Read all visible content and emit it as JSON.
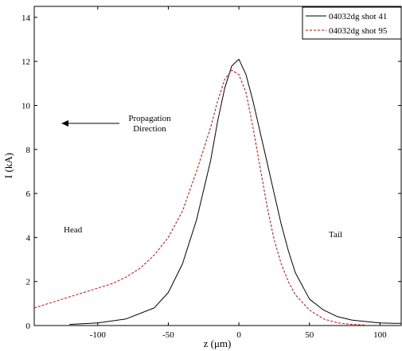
{
  "chart_data": {
    "type": "line",
    "xlabel": "z (μm)",
    "ylabel": "I (kA)",
    "xlim": [
      -145,
      115
    ],
    "ylim": [
      0,
      14.5
    ],
    "x_ticks": [
      -100,
      -50,
      0,
      50,
      100
    ],
    "y_ticks": [
      0,
      2,
      4,
      6,
      8,
      10,
      12,
      14
    ],
    "grid": false,
    "legend_position": "top-right",
    "annotations": {
      "propagation_line1": "Propagation",
      "propagation_line2": "Direction",
      "head": "Head",
      "tail": "Tail"
    },
    "series": [
      {
        "name": "04032dg shot 41",
        "color": "#000000",
        "dash": "solid",
        "x": [
          -120,
          -100,
          -80,
          -60,
          -50,
          -40,
          -30,
          -20,
          -15,
          -10,
          -5,
          0,
          5,
          10,
          15,
          20,
          25,
          30,
          35,
          40,
          50,
          60,
          70,
          80,
          90,
          100,
          110,
          115
        ],
        "y": [
          0.05,
          0.12,
          0.3,
          0.8,
          1.5,
          2.8,
          4.8,
          7.5,
          9.3,
          10.8,
          11.8,
          12.1,
          11.4,
          10.2,
          8.8,
          7.4,
          6.0,
          4.6,
          3.4,
          2.4,
          1.2,
          0.7,
          0.4,
          0.25,
          0.18,
          0.12,
          0.1,
          0.1
        ]
      },
      {
        "name": "04032dg shot 95",
        "color": "#e00000",
        "dash": "dashed",
        "x": [
          -145,
          -130,
          -120,
          -110,
          -100,
          -90,
          -80,
          -70,
          -60,
          -50,
          -40,
          -30,
          -20,
          -15,
          -10,
          -5,
          0,
          5,
          10,
          15,
          20,
          25,
          30,
          35,
          40,
          50,
          60,
          70,
          80,
          90
        ],
        "y": [
          0.8,
          1.1,
          1.3,
          1.5,
          1.7,
          1.9,
          2.2,
          2.6,
          3.2,
          4.0,
          5.2,
          7.0,
          9.0,
          10.2,
          11.2,
          11.6,
          11.4,
          10.6,
          9.0,
          7.2,
          5.4,
          3.9,
          2.8,
          2.0,
          1.4,
          0.7,
          0.3,
          0.12,
          0.05,
          0.02
        ]
      }
    ]
  }
}
